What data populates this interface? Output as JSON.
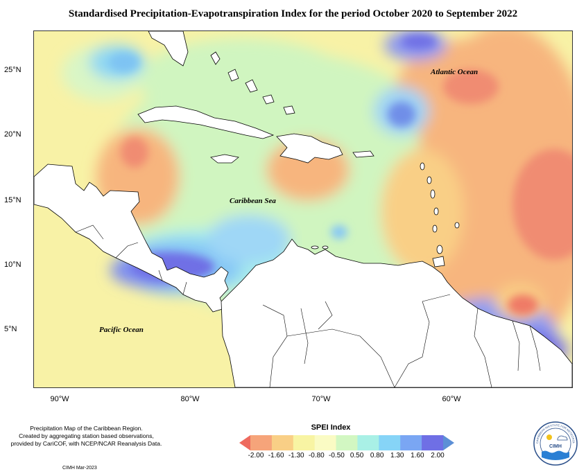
{
  "title": "Standardised Precipitation-Evapotranspiration Index for the period October 2020 to September 2022",
  "map": {
    "lat_labels": [
      "25°N",
      "20°N",
      "15°N",
      "10°N",
      "5°N"
    ],
    "lon_labels": [
      "90°W",
      "80°W",
      "70°W",
      "60°W"
    ],
    "places": {
      "atlantic": "Atlantic Ocean",
      "caribbean": "Caribbean Sea",
      "pacific": "Pacific Ocean"
    },
    "extent_lon": [
      -92,
      -51.5
    ],
    "extent_lat": [
      1,
      28
    ]
  },
  "legend": {
    "title": "SPEI Index",
    "ticks": [
      "-2.00",
      "-1.60",
      "-1.30",
      "-0.80",
      "-0.50",
      "0.50",
      "0.80",
      "1.30",
      "1.60",
      "2.00"
    ],
    "colors": [
      "#ee6a5e",
      "#f6a47a",
      "#f9cf86",
      "#f8f4a3",
      "#fafbc4",
      "#d2f7c2",
      "#a9f0e6",
      "#86d4f7",
      "#7aa6f3",
      "#6f6fe5",
      "#5c8fd6"
    ]
  },
  "footnote": {
    "line1": "Precipitation Map of the Caribbean Region.",
    "line2": "Created by aggregating station based observations,",
    "line3": "provided by CariCOF, with NCEP/NCAR Reanalysis Data.",
    "credit": "CIMH Mar-2023"
  },
  "logo": {
    "text": "CIMH",
    "arc_text": "CARIBBEAN INSTITUTE FOR METEOROLOGY AND HYDROLOGY"
  }
}
